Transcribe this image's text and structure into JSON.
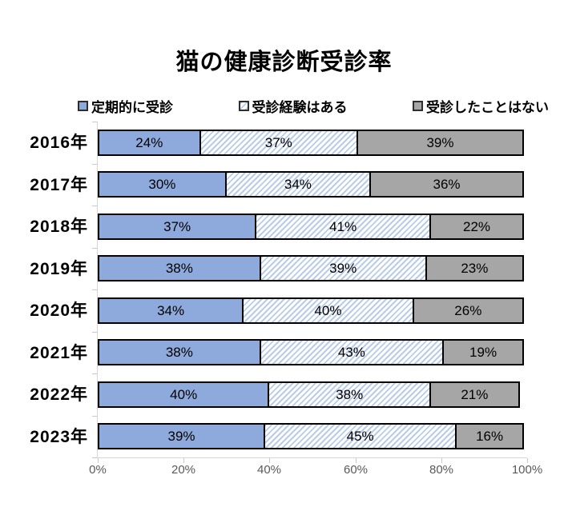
{
  "title": "猫の健康診断受診率",
  "colors": {
    "series_blue": "#8EA9DB",
    "hatch_stripe": "#B9CCE8",
    "series_gray": "#A6A6A6",
    "segment_border": "#000000",
    "axis_line": "#D6D6D6",
    "tick_label_text": "#595959",
    "background": "#FFFFFF"
  },
  "chart_data": {
    "type": "bar",
    "orientation": "horizontal",
    "stacked": true,
    "title": "猫の健康診断受診率",
    "categories": [
      "2016年",
      "2017年",
      "2018年",
      "2019年",
      "2020年",
      "2021年",
      "2022年",
      "2023年"
    ],
    "series": [
      {
        "name": "定期的に受診",
        "pattern": "solid",
        "color": "#8EA9DB",
        "values": [
          24,
          30,
          37,
          38,
          34,
          38,
          40,
          39
        ]
      },
      {
        "name": "受診経験はある",
        "pattern": "diagonal-hatch",
        "color": "#B9CCE8",
        "values": [
          37,
          34,
          41,
          39,
          40,
          43,
          38,
          45
        ]
      },
      {
        "name": "受診したことはない",
        "pattern": "solid",
        "color": "#A6A6A6",
        "values": [
          39,
          36,
          22,
          23,
          26,
          19,
          21,
          16
        ]
      }
    ],
    "data_label_suffix": "%",
    "xlabel": "",
    "ylabel": "",
    "xlim": [
      0,
      100
    ],
    "x_ticks": [
      0,
      20,
      40,
      60,
      80,
      100
    ],
    "x_tick_labels": [
      "0%",
      "20%",
      "40%",
      "60%",
      "80%",
      "100%"
    ],
    "grid": false,
    "legend_position": "top"
  }
}
